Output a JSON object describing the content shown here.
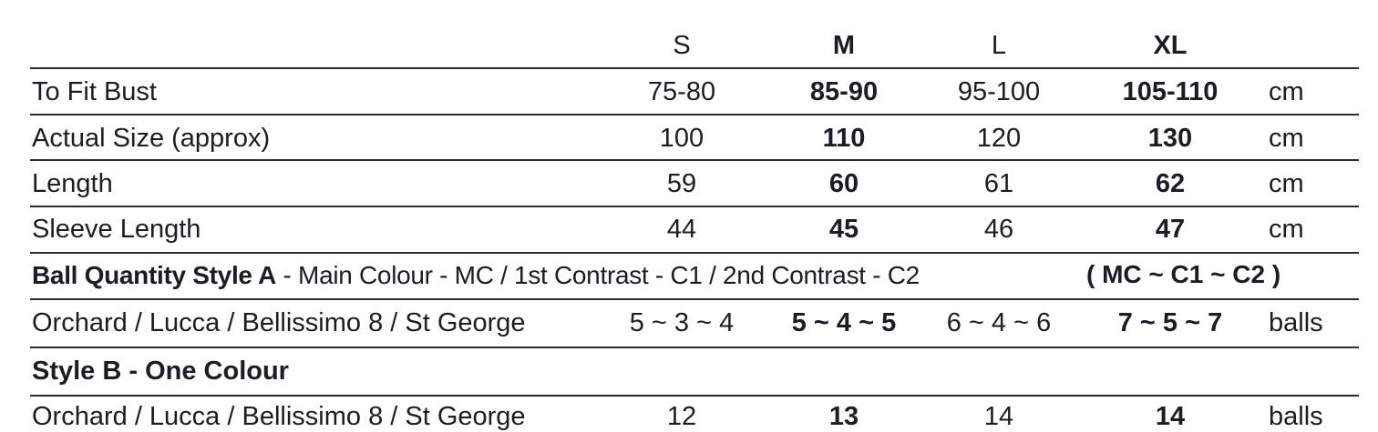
{
  "header": {
    "sizes": [
      "S",
      "M",
      "L",
      "XL"
    ]
  },
  "measurements": [
    {
      "label": "To Fit Bust",
      "values": [
        "75-80",
        "85-90",
        "95-100",
        "105-110"
      ],
      "unit": "cm"
    },
    {
      "label": "Actual Size (approx)",
      "values": [
        "100",
        "110",
        "120",
        "130"
      ],
      "unit": "cm"
    },
    {
      "label": "Length",
      "values": [
        "59",
        "60",
        "61",
        "62"
      ],
      "unit": "cm"
    },
    {
      "label": "Sleeve Length",
      "values": [
        "44",
        "45",
        "46",
        "47"
      ],
      "unit": "cm"
    }
  ],
  "style_a": {
    "heading_bold": "Ball Quantity Style A",
    "heading_rest": " - Main Colour - MC / 1st Contrast - C1 / 2nd Contrast - C2",
    "heading_code": "( MC ~ C1 ~ C2 )",
    "row": {
      "label": "Orchard / Lucca / Bellissimo 8 / St George",
      "values": [
        "5 ~ 3 ~ 4",
        "5 ~ 4 ~ 5",
        "6 ~ 4 ~ 6",
        "7 ~ 5 ~ 7"
      ],
      "unit": "balls"
    }
  },
  "style_b": {
    "heading": "Style B - One Colour",
    "row": {
      "label": "Orchard / Lucca / Bellissimo 8 / St George",
      "values": [
        "12",
        "13",
        "14",
        "14"
      ],
      "unit": "balls"
    }
  }
}
